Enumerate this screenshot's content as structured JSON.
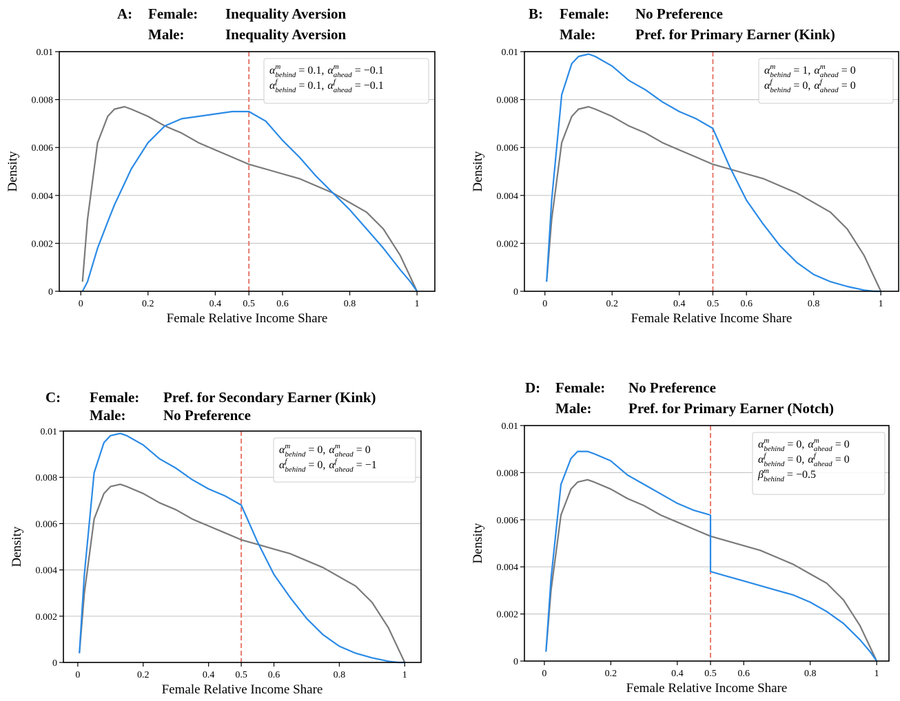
{
  "chart_data": [
    {
      "type": "line",
      "title": {
        "panel": "A:",
        "lines": [
          [
            "Female:",
            "Inequality Aversion"
          ],
          [
            "Male:",
            "Inequality Aversion"
          ]
        ]
      },
      "annotation": [
        {
          "sep": ",",
          "terms": [
            {
              "base": "α",
              "sup": "m",
              "sub": "behind",
              "op": "=",
              "rhs": "0.1"
            },
            {
              "base": "α",
              "sup": "m",
              "sub": "ahead",
              "op": "=",
              "rhs": "−0.1"
            }
          ]
        },
        {
          "sep": ",",
          "terms": [
            {
              "base": "α",
              "sup": "f",
              "sub": "behind",
              "op": "=",
              "rhs": "0.1"
            },
            {
              "base": "α",
              "sup": "f",
              "sub": "ahead",
              "op": "=",
              "rhs": "−0.1"
            }
          ]
        }
      ],
      "xlabel": "Female Relative Income Share",
      "ylabel": "Density",
      "x": [
        0.005,
        0.02,
        0.05,
        0.08,
        0.1,
        0.13,
        0.15,
        0.2,
        0.25,
        0.3,
        0.35,
        0.4,
        0.45,
        0.5,
        0.55,
        0.6,
        0.65,
        0.7,
        0.75,
        0.8,
        0.85,
        0.9,
        0.95,
        0.98,
        1.0
      ],
      "series": [
        {
          "color": "#7a7a7a",
          "values": [
            0.0004,
            0.003,
            0.0062,
            0.0073,
            0.0076,
            0.0077,
            0.0076,
            0.0073,
            0.0069,
            0.0066,
            0.0062,
            0.0059,
            0.0056,
            0.0053,
            0.0051,
            0.0049,
            0.0047,
            0.0044,
            0.0041,
            0.0037,
            0.0033,
            0.0026,
            0.0015,
            0.0006,
            0
          ]
        },
        {
          "color": "#2a8ae6",
          "values": [
            0,
            0.0004,
            0.0018,
            0.0029,
            0.0036,
            0.0045,
            0.0051,
            0.0062,
            0.0069,
            0.0072,
            0.0073,
            0.0074,
            0.0075,
            0.0075,
            0.0071,
            0.0063,
            0.0056,
            0.0048,
            0.0041,
            0.0034,
            0.0026,
            0.0018,
            0.0009,
            0.0004,
            0
          ]
        }
      ],
      "vline": 0.5,
      "vline_color": "#e8786c",
      "xlim": [
        -0.064,
        1.053
      ],
      "ylim": [
        0,
        0.01
      ],
      "xticks": [
        0,
        0.2,
        0.4,
        0.5,
        0.6,
        0.8,
        1
      ],
      "yticks": [
        0,
        0.002,
        0.004,
        0.006,
        0.008,
        0.01
      ],
      "grid": true
    },
    {
      "type": "line",
      "title": {
        "panel": "B:",
        "lines": [
          [
            "Female:",
            "No Preference"
          ],
          [
            "Male:",
            "Pref. for Primary Earner (Kink)"
          ]
        ]
      },
      "annotation": [
        {
          "sep": ",",
          "terms": [
            {
              "base": "α",
              "sup": "m",
              "sub": "behind",
              "op": "=",
              "rhs": "1"
            },
            {
              "base": "α",
              "sup": "m",
              "sub": "ahead",
              "op": "=",
              "rhs": "0"
            }
          ]
        },
        {
          "sep": ",",
          "terms": [
            {
              "base": "α",
              "sup": "f",
              "sub": "behind",
              "op": "=",
              "rhs": "0"
            },
            {
              "base": "α",
              "sup": "f",
              "sub": "ahead",
              "op": "=",
              "rhs": "0"
            }
          ]
        }
      ],
      "xlabel": "Female Relative Income Share",
      "ylabel": "Density",
      "x": [
        0.005,
        0.02,
        0.05,
        0.08,
        0.1,
        0.13,
        0.15,
        0.2,
        0.25,
        0.3,
        0.35,
        0.4,
        0.45,
        0.5,
        0.55,
        0.6,
        0.65,
        0.7,
        0.75,
        0.8,
        0.85,
        0.9,
        0.95,
        0.98,
        1.0
      ],
      "series": [
        {
          "color": "#7a7a7a",
          "values": [
            0.0004,
            0.003,
            0.0062,
            0.0073,
            0.0076,
            0.0077,
            0.0076,
            0.0073,
            0.0069,
            0.0066,
            0.0062,
            0.0059,
            0.0056,
            0.0053,
            0.0051,
            0.0049,
            0.0047,
            0.0044,
            0.0041,
            0.0037,
            0.0033,
            0.0026,
            0.0015,
            0.0006,
            0
          ]
        },
        {
          "color": "#2a8ae6",
          "values": [
            0.0004,
            0.0038,
            0.0082,
            0.0095,
            0.0098,
            0.0099,
            0.0098,
            0.0094,
            0.0088,
            0.0084,
            0.0079,
            0.0075,
            0.0072,
            0.0068,
            0.0052,
            0.0038,
            0.0028,
            0.0019,
            0.0012,
            0.0007,
            0.0004,
            0.0002,
            5e-05,
            0,
            0
          ]
        }
      ],
      "vline": 0.5,
      "vline_color": "#e8786c",
      "xlim": [
        -0.061,
        1.053
      ],
      "ylim": [
        0,
        0.01
      ],
      "xticks": [
        0,
        0.2,
        0.4,
        0.5,
        0.6,
        0.8,
        1
      ],
      "yticks": [
        0,
        0.002,
        0.004,
        0.006,
        0.008,
        0.01
      ],
      "grid": true
    },
    {
      "type": "line",
      "title": {
        "panel": "C:",
        "lines": [
          [
            "Female:",
            "Pref. for Secondary Earner (Kink)"
          ],
          [
            "Male:",
            "No Preference"
          ]
        ]
      },
      "annotation": [
        {
          "sep": ",",
          "terms": [
            {
              "base": "α",
              "sup": "m",
              "sub": "behind",
              "op": "=",
              "rhs": "0"
            },
            {
              "base": "α",
              "sup": "m",
              "sub": "ahead",
              "op": "=",
              "rhs": "0"
            }
          ]
        },
        {
          "sep": ",",
          "terms": [
            {
              "base": "α",
              "sup": "f",
              "sub": "behind",
              "op": "=",
              "rhs": "0"
            },
            {
              "base": "α",
              "sup": "f",
              "sub": "ahead",
              "op": "=",
              "rhs": "−1"
            }
          ]
        }
      ],
      "xlabel": "Female Relative Income Share",
      "ylabel": "Density",
      "x": [
        0.005,
        0.02,
        0.05,
        0.08,
        0.1,
        0.13,
        0.15,
        0.2,
        0.25,
        0.3,
        0.35,
        0.4,
        0.45,
        0.5,
        0.55,
        0.6,
        0.65,
        0.7,
        0.75,
        0.8,
        0.85,
        0.9,
        0.95,
        0.98,
        1.0
      ],
      "series": [
        {
          "color": "#7a7a7a",
          "values": [
            0.0004,
            0.003,
            0.0062,
            0.0073,
            0.0076,
            0.0077,
            0.0076,
            0.0073,
            0.0069,
            0.0066,
            0.0062,
            0.0059,
            0.0056,
            0.0053,
            0.0051,
            0.0049,
            0.0047,
            0.0044,
            0.0041,
            0.0037,
            0.0033,
            0.0026,
            0.0015,
            0.0006,
            0
          ]
        },
        {
          "color": "#2a8ae6",
          "values": [
            0.0004,
            0.0038,
            0.0082,
            0.0095,
            0.0098,
            0.0099,
            0.0098,
            0.0094,
            0.0088,
            0.0084,
            0.0079,
            0.0075,
            0.0072,
            0.0068,
            0.0052,
            0.0038,
            0.0028,
            0.0019,
            0.0012,
            0.0007,
            0.0004,
            0.0002,
            5e-05,
            0,
            0
          ]
        }
      ],
      "vline": 0.5,
      "vline_color": "#e8786c",
      "xlim": [
        -0.044,
        1.05
      ],
      "ylim": [
        0,
        0.01
      ],
      "xticks": [
        0,
        0.2,
        0.4,
        0.5,
        0.6,
        0.8,
        1
      ],
      "yticks": [
        0,
        0.002,
        0.004,
        0.006,
        0.008,
        0.01
      ],
      "grid": true
    },
    {
      "type": "line",
      "title": {
        "panel": "D:",
        "lines": [
          [
            "Female:",
            "No Preference"
          ],
          [
            "Male:",
            "Pref. for Primary Earner (Notch)"
          ]
        ]
      },
      "annotation": [
        {
          "sep": ",",
          "terms": [
            {
              "base": "α",
              "sup": "m",
              "sub": "behind",
              "op": "=",
              "rhs": "0"
            },
            {
              "base": "α",
              "sup": "m",
              "sub": "ahead",
              "op": "=",
              "rhs": "0"
            }
          ]
        },
        {
          "sep": ",",
          "terms": [
            {
              "base": "α",
              "sup": "f",
              "sub": "behind",
              "op": "=",
              "rhs": "0"
            },
            {
              "base": "α",
              "sup": "f",
              "sub": "ahead",
              "op": "=",
              "rhs": "0"
            }
          ]
        },
        {
          "sep": ",",
          "terms": [
            {
              "base": "β",
              "sup": "m",
              "sub": "behind",
              "op": "=",
              "rhs": "−0.5"
            }
          ]
        }
      ],
      "xlabel": "Female Relative Income Share",
      "ylabel": "Density",
      "x": [
        0.005,
        0.02,
        0.05,
        0.08,
        0.1,
        0.13,
        0.15,
        0.2,
        0.25,
        0.3,
        0.35,
        0.4,
        0.45,
        0.5,
        0.5,
        0.55,
        0.6,
        0.65,
        0.7,
        0.75,
        0.8,
        0.85,
        0.9,
        0.95,
        0.98,
        1.0
      ],
      "series": [
        {
          "color": "#7a7a7a",
          "values": [
            0.0004,
            0.003,
            0.0062,
            0.0073,
            0.0076,
            0.0077,
            0.0076,
            0.0073,
            0.0069,
            0.0066,
            0.0062,
            0.0059,
            0.0056,
            0.0053,
            0.0053,
            0.0051,
            0.0049,
            0.0047,
            0.0044,
            0.0041,
            0.0037,
            0.0033,
            0.0026,
            0.0015,
            0.0006,
            0
          ]
        },
        {
          "color": "#2a8ae6",
          "values": [
            0.0004,
            0.0035,
            0.0075,
            0.0086,
            0.0089,
            0.0089,
            0.0088,
            0.0085,
            0.0079,
            0.0075,
            0.0071,
            0.0067,
            0.0064,
            0.0062,
            0.0038,
            0.0036,
            0.0034,
            0.0032,
            0.003,
            0.0028,
            0.0025,
            0.0021,
            0.0016,
            0.0009,
            0.0004,
            0
          ]
        }
      ],
      "vline": 0.5,
      "vline_color": "#e8786c",
      "xlim": [
        -0.06,
        1.037
      ],
      "ylim": [
        0,
        0.01
      ],
      "xticks": [
        0,
        0.2,
        0.4,
        0.5,
        0.6,
        0.8,
        1
      ],
      "yticks": [
        0,
        0.002,
        0.004,
        0.006,
        0.008,
        0.01
      ],
      "grid": true
    }
  ]
}
